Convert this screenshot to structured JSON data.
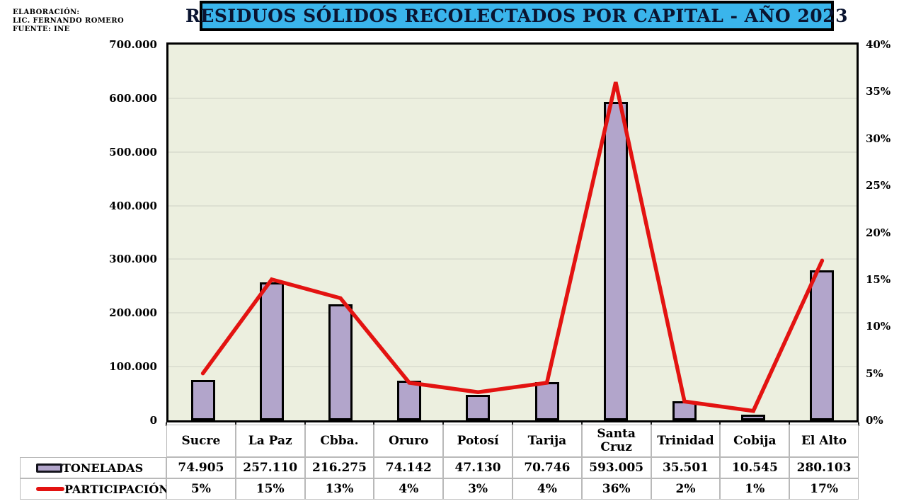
{
  "annotation": {
    "line1": "ELABORACIÓN:",
    "line2": "LIC. FERNANDO ROMERO",
    "line3": "FUENTE: INE"
  },
  "title": "RESIDUOS SÓLIDOS RECOLECTADOS POR CAPITAL - AÑO 2023",
  "colors": {
    "title_bg": "#3ab5ec",
    "title_text": "#0a1430",
    "plot_bg": "#ecefdf",
    "gridline": "#dde0d2",
    "bar_fill": "#b2a5cb",
    "bar_border": "#000000",
    "line": "#e31311",
    "table_border": "#b9b9b9"
  },
  "chart_data": {
    "type": "bar",
    "subtype": "bar+line combo",
    "categories": [
      "Sucre",
      "La Paz",
      "Cbba.",
      "Oruro",
      "Potosí",
      "Tarija",
      "Santa Cruz",
      "Trinidad",
      "Cobija",
      "El Alto"
    ],
    "series": [
      {
        "name": "TONELADAS",
        "type": "bar",
        "axis": "left",
        "values": [
          74905,
          257110,
          216275,
          74142,
          47130,
          70746,
          593005,
          35501,
          10545,
          280103
        ],
        "labels": [
          "74.905",
          "257.110",
          "216.275",
          "74.142",
          "47.130",
          "70.746",
          "593.005",
          "35.501",
          "10.545",
          "280.103"
        ]
      },
      {
        "name": "PARTICIPACIÓN",
        "type": "line",
        "axis": "right",
        "values": [
          5,
          15,
          13,
          4,
          3,
          4,
          36,
          2,
          1,
          17
        ],
        "labels": [
          "5%",
          "15%",
          "13%",
          "4%",
          "3%",
          "4%",
          "36%",
          "2%",
          "1%",
          "17%"
        ]
      }
    ],
    "left_axis": {
      "min": 0,
      "max": 700000,
      "step": 100000,
      "tick_labels": [
        "700.000",
        "600.000",
        "500.000",
        "400.000",
        "300.000",
        "200.000",
        "100.000",
        "0"
      ]
    },
    "right_axis": {
      "min": 0,
      "max": 40,
      "step": 5,
      "tick_labels": [
        "40%",
        "35%",
        "30%",
        "25%",
        "20%",
        "15%",
        "10%",
        "5%",
        "0%"
      ]
    },
    "grid": true,
    "legend_position": "table-left"
  }
}
